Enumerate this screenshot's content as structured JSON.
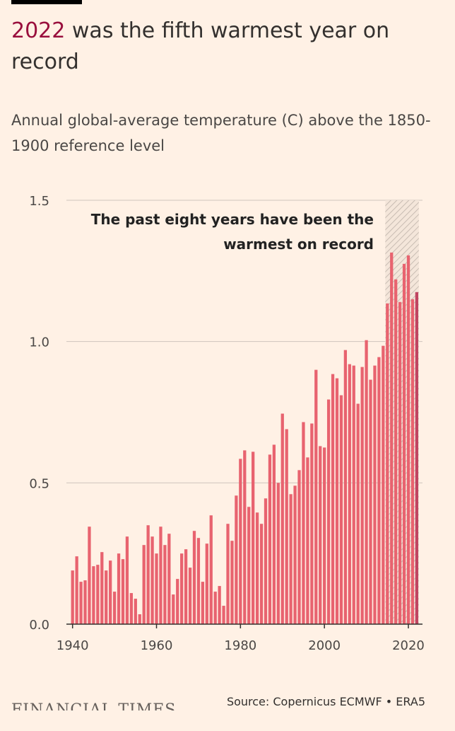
{
  "header": {
    "title_highlight": "2022",
    "title_rest": " was the fifth warmest year on record",
    "subtitle": "Annual global-average temperature (C) above the 1850-1900 reference level"
  },
  "footer": {
    "brand": "FINANCIAL TIMES",
    "source": "Source: Copernicus ECMWF • ERA5"
  },
  "colors": {
    "bar": "#e8636f",
    "bar_highlight": "#c04561",
    "title_highlight": "#990f3d",
    "background": "#fff1e5"
  },
  "chart_data": {
    "type": "bar",
    "x": [
      1940,
      1941,
      1942,
      1943,
      1944,
      1945,
      1946,
      1947,
      1948,
      1949,
      1950,
      1951,
      1952,
      1953,
      1954,
      1955,
      1956,
      1957,
      1958,
      1959,
      1960,
      1961,
      1962,
      1963,
      1964,
      1965,
      1966,
      1967,
      1968,
      1969,
      1970,
      1971,
      1972,
      1973,
      1974,
      1975,
      1976,
      1977,
      1978,
      1979,
      1980,
      1981,
      1982,
      1983,
      1984,
      1985,
      1986,
      1987,
      1988,
      1989,
      1990,
      1991,
      1992,
      1993,
      1994,
      1995,
      1996,
      1997,
      1998,
      1999,
      2000,
      2001,
      2002,
      2003,
      2004,
      2005,
      2006,
      2007,
      2008,
      2009,
      2010,
      2011,
      2012,
      2013,
      2014,
      2015,
      2016,
      2017,
      2018,
      2019,
      2020,
      2021,
      2022
    ],
    "values": [
      0.19,
      0.24,
      0.15,
      0.155,
      0.345,
      0.205,
      0.21,
      0.255,
      0.19,
      0.225,
      0.115,
      0.25,
      0.23,
      0.31,
      0.11,
      0.09,
      0.035,
      0.28,
      0.35,
      0.31,
      0.25,
      0.345,
      0.28,
      0.32,
      0.105,
      0.16,
      0.25,
      0.265,
      0.2,
      0.33,
      0.305,
      0.15,
      0.285,
      0.385,
      0.115,
      0.135,
      0.065,
      0.355,
      0.295,
      0.455,
      0.585,
      0.615,
      0.415,
      0.61,
      0.395,
      0.355,
      0.445,
      0.6,
      0.635,
      0.5,
      0.745,
      0.69,
      0.46,
      0.49,
      0.545,
      0.715,
      0.59,
      0.71,
      0.9,
      0.63,
      0.625,
      0.795,
      0.885,
      0.87,
      0.81,
      0.97,
      0.92,
      0.915,
      0.78,
      0.91,
      1.005,
      0.865,
      0.915,
      0.945,
      0.985,
      1.135,
      1.315,
      1.22,
      1.14,
      1.275,
      1.305,
      1.15,
      1.175
    ],
    "highlight_from": 2015,
    "ylim": [
      0,
      1.5
    ],
    "yticks": [
      "0.0",
      "0.5",
      "1.0",
      "1.5"
    ],
    "ytick_values": [
      0,
      0.5,
      1.0,
      1.5
    ],
    "xticks": [
      "1940",
      "1960",
      "1980",
      "2000",
      "2020"
    ],
    "xtick_values": [
      1940,
      1960,
      1980,
      2000,
      2020
    ],
    "annotation_line1": "The past eight years have been the",
    "annotation_line2": "warmest on record",
    "grid": true
  }
}
